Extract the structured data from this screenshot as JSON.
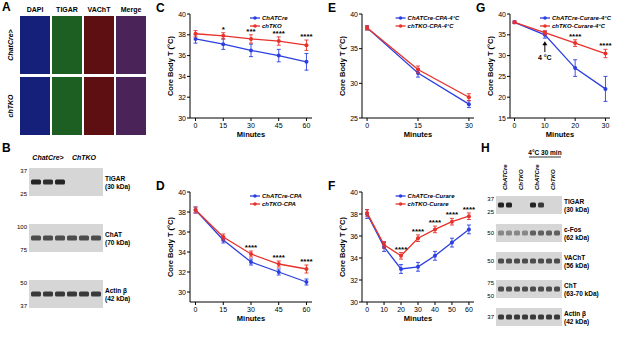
{
  "chart_data": [
    {
      "type": "line",
      "title": "C",
      "x_label": "Minutes",
      "y_label": "Core Body T (°C)",
      "x": [
        0,
        15,
        30,
        45,
        60
      ],
      "xlim": [
        -3,
        63
      ],
      "xticks": [
        0,
        15,
        30,
        45,
        60
      ],
      "ylim": [
        30,
        40
      ],
      "yticks": [
        30,
        32,
        34,
        36,
        38,
        40
      ],
      "legend": "top-right",
      "series": [
        {
          "name": "ChATCre",
          "color": "#2b3fe0",
          "marker": "circle",
          "line_style": "solid",
          "values": [
            37.6,
            37.1,
            36.5,
            36.0,
            35.4
          ],
          "errors": [
            0.4,
            0.5,
            0.6,
            0.6,
            0.8
          ]
        },
        {
          "name": "chTKO",
          "color": "#e8312a",
          "marker": "circle",
          "line_style": "solid",
          "values": [
            38.1,
            37.9,
            37.6,
            37.4,
            37.0
          ],
          "errors": [
            0.3,
            0.3,
            0.4,
            0.4,
            0.5
          ]
        }
      ],
      "annotations": [
        {
          "x": 15,
          "text": "*"
        },
        {
          "x": 30,
          "text": "***"
        },
        {
          "x": 45,
          "text": "****"
        },
        {
          "x": 60,
          "text": "****"
        }
      ]
    },
    {
      "type": "line",
      "title": "D",
      "x_label": "Minutes",
      "y_label": "Core Body T (°C)",
      "x": [
        0,
        15,
        30,
        45,
        60
      ],
      "xlim": [
        -3,
        63
      ],
      "xticks": [
        0,
        15,
        30,
        45,
        60
      ],
      "ylim": [
        29,
        40
      ],
      "yticks": [
        30,
        32,
        34,
        36,
        38,
        40
      ],
      "legend": "top-right",
      "series": [
        {
          "name": "ChATCre-CPA",
          "color": "#2b3fe0",
          "marker": "circle",
          "line_style": "solid",
          "values": [
            38.2,
            35.2,
            33.0,
            32.0,
            31.0
          ],
          "errors": [
            0.3,
            0.3,
            0.3,
            0.3,
            0.3
          ]
        },
        {
          "name": "chTKO-CPA",
          "color": "#e8312a",
          "marker": "circle",
          "line_style": "solid",
          "values": [
            38.2,
            35.5,
            33.8,
            32.8,
            32.3
          ],
          "errors": [
            0.3,
            0.3,
            0.3,
            0.3,
            0.4
          ]
        }
      ],
      "annotations": [
        {
          "x": 30,
          "text": "****"
        },
        {
          "x": 45,
          "text": "****"
        },
        {
          "x": 60,
          "text": "****"
        }
      ]
    },
    {
      "type": "line",
      "title": "E",
      "x_label": "Minutes",
      "y_label": "Core Body T (°C)",
      "x": [
        0,
        15,
        30
      ],
      "xlim": [
        -1.5,
        31.5
      ],
      "xticks": [
        0,
        15,
        30
      ],
      "ylim": [
        25,
        40
      ],
      "yticks": [
        25,
        30,
        35,
        40
      ],
      "legend": "top",
      "series": [
        {
          "name": "ChATCre-CPA-4°C",
          "color": "#2b3fe0",
          "marker": "circle",
          "line_style": "solid",
          "values": [
            38.0,
            31.5,
            27.0
          ],
          "errors": [
            0.3,
            0.6,
            0.5
          ]
        },
        {
          "name": "chTKO-CPA-4°C",
          "color": "#e8312a",
          "marker": "circle",
          "line_style": "solid",
          "values": [
            38.0,
            32.0,
            28.0
          ],
          "errors": [
            0.3,
            0.5,
            0.5
          ]
        }
      ],
      "annotations": []
    },
    {
      "type": "line",
      "title": "F",
      "x_label": "Minutes",
      "y_label": "Core Body T (°C)",
      "x": [
        0,
        10,
        20,
        30,
        40,
        50,
        60
      ],
      "xlim": [
        -3,
        63
      ],
      "xticks": [
        0,
        10,
        20,
        30,
        40,
        50,
        60
      ],
      "ylim": [
        30,
        40
      ],
      "yticks": [
        30,
        32,
        34,
        36,
        38,
        40
      ],
      "legend": "top",
      "series": [
        {
          "name": "ChATCre-Curare",
          "color": "#2b3fe0",
          "marker": "circle",
          "line_style": "solid",
          "values": [
            38.0,
            35.0,
            33.0,
            33.2,
            34.2,
            35.4,
            36.6
          ],
          "errors": [
            0.4,
            0.4,
            0.4,
            0.4,
            0.4,
            0.4,
            0.4
          ]
        },
        {
          "name": "chTKO-Curare",
          "color": "#e8312a",
          "marker": "circle",
          "line_style": "solid",
          "values": [
            38.1,
            35.2,
            34.2,
            35.8,
            36.6,
            37.3,
            37.8
          ],
          "errors": [
            0.3,
            0.3,
            0.3,
            0.3,
            0.3,
            0.3,
            0.3
          ]
        }
      ],
      "annotations": [
        {
          "x": 20,
          "text": "****"
        },
        {
          "x": 30,
          "text": "****"
        },
        {
          "x": 40,
          "text": "****"
        },
        {
          "x": 50,
          "text": "****"
        },
        {
          "x": 60,
          "text": "****"
        }
      ]
    },
    {
      "type": "line",
      "title": "G",
      "x_label": "Minutes",
      "y_label": "Core Body T (°C)",
      "x": [
        0,
        10,
        20,
        30
      ],
      "xlim": [
        -1.5,
        31.5
      ],
      "xticks": [
        0,
        10,
        20,
        30
      ],
      "ylim": [
        15,
        40
      ],
      "yticks": [
        15,
        20,
        25,
        30,
        35,
        40
      ],
      "legend": "top",
      "series": [
        {
          "name": "ChATCre-Curare-4°C",
          "color": "#2b3fe0",
          "marker": "circle",
          "line_style": "solid",
          "values": [
            38.0,
            35.0,
            27.0,
            22.0
          ],
          "errors": [
            0.3,
            0.8,
            2.0,
            3.0
          ]
        },
        {
          "name": "chTKO-Curare-4°C",
          "color": "#e8312a",
          "marker": "circle",
          "line_style": "solid",
          "values": [
            38.0,
            35.5,
            33.0,
            30.5
          ],
          "errors": [
            0.3,
            0.5,
            0.8,
            1.0
          ]
        }
      ],
      "annotations": [
        {
          "x": 10,
          "text": "4 °C",
          "arrow": true
        },
        {
          "x": 20,
          "text": "****"
        },
        {
          "x": 30,
          "text": "****"
        }
      ]
    }
  ],
  "panel_a": {
    "title": "A",
    "columns": [
      "DAPI",
      "TIGAR",
      "VAChT",
      "Merge"
    ],
    "rows": [
      "ChatCre>",
      "chTKO"
    ],
    "colors": [
      "#14207a",
      "#1d5e22",
      "#5e0f12",
      "#4a2458"
    ]
  },
  "panel_b": {
    "title": "B",
    "lane_groups": [
      {
        "label": "ChatCre>",
        "lanes": 3
      },
      {
        "label": "ChTKO",
        "lanes": 3
      }
    ],
    "rows": [
      {
        "label": "TIGAR",
        "sub": "(30 kDa)",
        "markers": [
          37,
          25
        ],
        "bands": [
          0.9,
          0.85,
          0.9,
          0,
          0,
          0
        ]
      },
      {
        "label": "ChAT",
        "sub": "(70 kDa)",
        "markers": [
          100,
          75
        ],
        "bands": [
          0.7,
          0.7,
          0.7,
          0.7,
          0.7,
          0.7
        ]
      },
      {
        "label": "Actin β",
        "sub": "(42 kDa)",
        "markers": [
          50,
          37
        ],
        "bands": [
          0.8,
          0.8,
          0.8,
          0.8,
          0.8,
          0.8
        ]
      }
    ]
  },
  "panel_h": {
    "title": "H",
    "lane_groups": [
      {
        "label": "ChATCre",
        "lanes": 2
      },
      {
        "label": "ChTKO",
        "lanes": 2
      },
      {
        "label": "ChATCre",
        "lanes": 2
      },
      {
        "label": "ChTKO",
        "lanes": 2
      }
    ],
    "header": {
      "text": "4°C 30 min",
      "groups": [
        2,
        3
      ]
    },
    "rows": [
      {
        "label": "TIGAR",
        "sub": "(30 kDa)",
        "markers": [
          37,
          25
        ],
        "bands": [
          0.9,
          0.9,
          0,
          0,
          0.9,
          0.8,
          0,
          0
        ]
      },
      {
        "label": "c-Fos",
        "sub": "(62 kDa)",
        "markers": [
          50
        ],
        "bands": [
          0.4,
          0.4,
          0.4,
          0.4,
          0.6,
          0.6,
          0.6,
          0.6
        ]
      },
      {
        "label": "VAChT",
        "sub": "(56 kDa)",
        "markers": [
          50
        ],
        "bands": [
          0.7,
          0.7,
          0.7,
          0.7,
          0.7,
          0.7,
          0.7,
          0.7
        ]
      },
      {
        "label": "ChT",
        "sub": "(63-70 kDa)",
        "markers": [
          75,
          50
        ],
        "bands": [
          0.7,
          0.7,
          0.7,
          0.7,
          0.7,
          0.7,
          0.7,
          0.7
        ]
      },
      {
        "label": "Actin β",
        "sub": "(42 kDa)",
        "markers": [
          37
        ],
        "bands": [
          0.8,
          0.8,
          0.8,
          0.8,
          0.8,
          0.8,
          0.8,
          0.8
        ]
      }
    ]
  }
}
